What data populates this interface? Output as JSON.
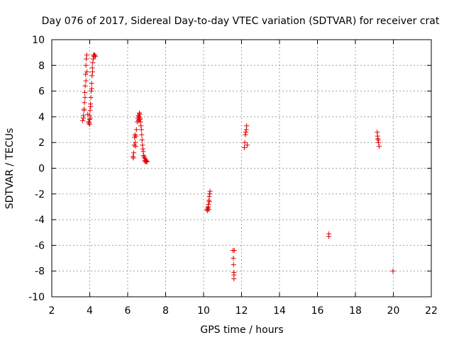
{
  "chart_data": {
    "type": "scatter",
    "title": "Day 076 of 2017, Sidereal Day-to-day VTEC variation (SDTVAR) for receiver crat",
    "xlabel": "GPS time / hours",
    "ylabel": "SDTVAR / TECUs",
    "xlim": [
      2,
      22
    ],
    "ylim": [
      -10,
      10
    ],
    "xticks": [
      2,
      4,
      6,
      8,
      10,
      12,
      14,
      16,
      18,
      20,
      22
    ],
    "yticks": [
      -10,
      -8,
      -6,
      -4,
      -2,
      0,
      2,
      4,
      6,
      8,
      10
    ],
    "grid": true,
    "marker": "+",
    "series": [
      {
        "name": "SDTVAR",
        "color": "#e00000",
        "x": [
          3.63,
          3.67,
          3.7,
          3.72,
          3.74,
          3.76,
          3.78,
          3.8,
          3.82,
          3.84,
          3.66,
          3.7,
          3.75,
          3.8,
          3.85,
          3.9,
          3.94,
          3.97,
          3.99,
          4.0,
          4.02,
          4.04,
          4.06,
          4.08,
          4.1,
          4.12,
          4.14,
          4.16,
          4.18,
          4.2,
          4.22,
          4.24,
          4.27,
          4.3,
          4.0,
          4.05,
          4.1,
          4.15,
          4.02,
          3.96,
          6.28,
          6.3,
          6.32,
          6.34,
          6.36,
          6.38,
          6.4,
          6.42,
          6.44,
          6.46,
          6.5,
          6.53,
          6.56,
          6.58,
          6.6,
          6.62,
          6.64,
          6.66,
          6.68,
          6.7,
          6.72,
          6.74,
          6.76,
          6.78,
          6.8,
          6.82,
          6.84,
          6.86,
          6.88,
          6.9,
          6.92,
          6.94,
          6.96,
          6.98,
          7.0,
          7.02,
          6.6,
          6.65,
          10.17,
          10.2,
          10.22,
          10.24,
          10.26,
          10.28,
          10.3,
          10.32,
          10.34,
          10.3,
          10.28,
          11.55,
          11.57,
          11.58,
          11.6,
          11.6,
          11.62,
          11.6,
          12.15,
          12.17,
          12.2,
          12.22,
          12.25,
          12.27,
          12.3,
          16.6,
          16.6,
          19.15,
          19.17,
          19.2,
          19.22,
          19.25,
          19.18,
          19.98
        ],
        "y": [
          3.7,
          4.1,
          4.5,
          5.1,
          5.9,
          6.4,
          7.3,
          8.0,
          8.5,
          8.8,
          3.9,
          4.6,
          5.5,
          6.8,
          7.5,
          4.2,
          3.6,
          3.5,
          3.4,
          3.8,
          4.5,
          5.0,
          5.5,
          6.0,
          6.6,
          7.2,
          7.8,
          8.2,
          8.5,
          8.8,
          8.7,
          8.8,
          8.8,
          8.7,
          4.1,
          4.8,
          6.2,
          7.5,
          3.9,
          3.6,
          0.9,
          0.8,
          1.2,
          1.8,
          2.4,
          2.6,
          2.0,
          1.7,
          2.5,
          3.0,
          3.6,
          3.9,
          4.1,
          3.7,
          3.8,
          4.3,
          4.2,
          3.9,
          3.6,
          3.3,
          3.0,
          2.6,
          2.2,
          1.8,
          1.5,
          1.3,
          1.0,
          0.9,
          0.8,
          0.6,
          0.5,
          0.7,
          0.6,
          0.5,
          0.55,
          0.5,
          4.0,
          3.8,
          -3.2,
          -3.3,
          -3.1,
          -3.0,
          -2.8,
          -2.5,
          -2.2,
          -2.0,
          -1.8,
          -2.6,
          -3.2,
          -6.4,
          -7.0,
          -7.5,
          -8.1,
          -8.6,
          -6.4,
          -8.3,
          1.6,
          2.0,
          2.6,
          2.8,
          3.0,
          3.3,
          1.8,
          -5.1,
          -5.3,
          2.8,
          2.5,
          2.2,
          2.0,
          1.7,
          2.3,
          -8.0
        ]
      }
    ]
  }
}
